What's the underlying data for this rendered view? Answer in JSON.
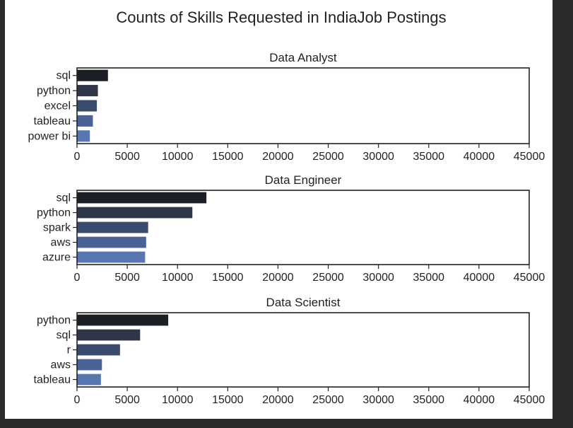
{
  "chart_data": {
    "type": "bar",
    "orientation": "horizontal",
    "title": "Counts of Skills Requested in IndiaJob Postings",
    "xlim": [
      0,
      45000
    ],
    "xticks": [
      0,
      5000,
      10000,
      15000,
      20000,
      25000,
      30000,
      35000,
      40000,
      45000
    ],
    "grid": false,
    "palette": [
      "#1d1f26",
      "#2e3648",
      "#394c6d",
      "#4a6295",
      "#5877b0"
    ],
    "panels": [
      {
        "title": "Data Analyst",
        "categories": [
          "sql",
          "python",
          "excel",
          "tableau",
          "power bi"
        ],
        "values": [
          3100,
          2100,
          2000,
          1600,
          1300
        ]
      },
      {
        "title": "Data Engineer",
        "categories": [
          "sql",
          "python",
          "spark",
          "aws",
          "azure"
        ],
        "values": [
          12900,
          11500,
          7100,
          6900,
          6800
        ]
      },
      {
        "title": "Data Scientist",
        "categories": [
          "python",
          "sql",
          "r",
          "aws",
          "tableau"
        ],
        "values": [
          9100,
          6300,
          4300,
          2500,
          2400
        ]
      }
    ]
  }
}
